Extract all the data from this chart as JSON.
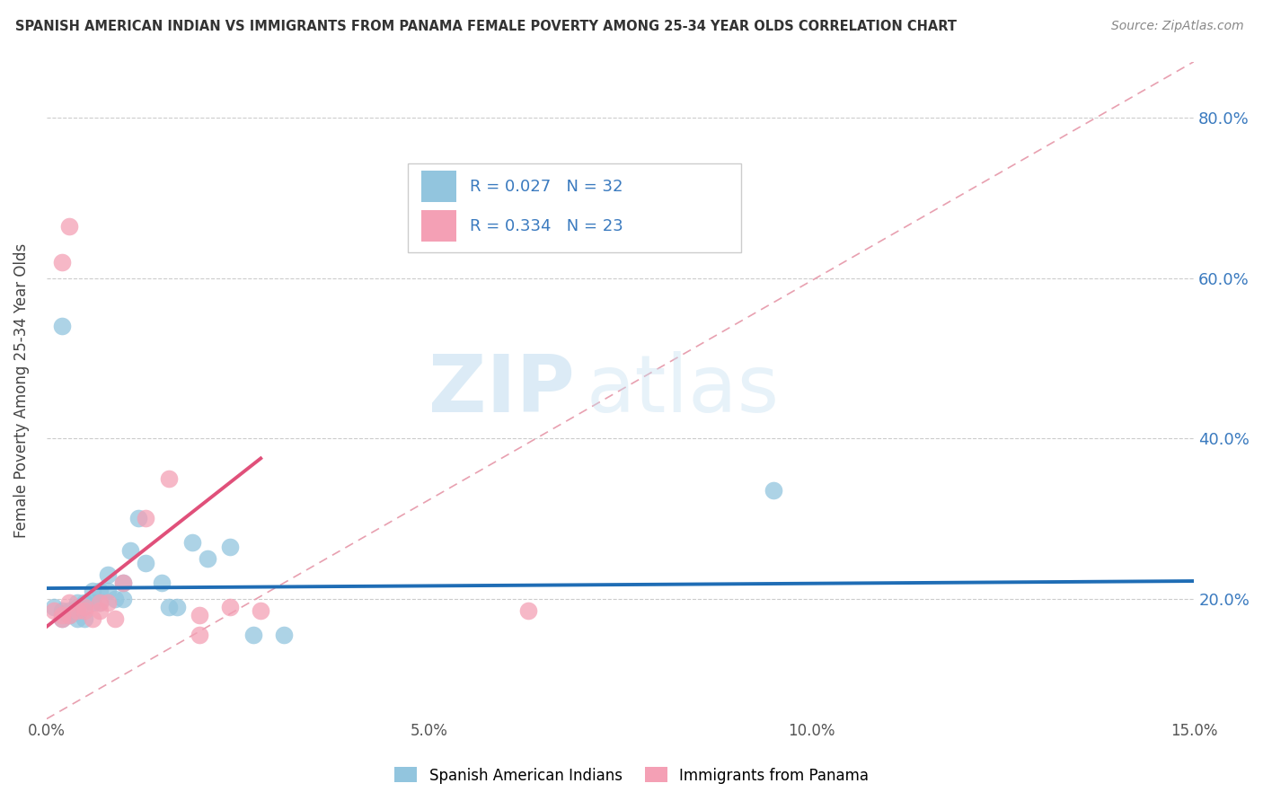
{
  "title": "SPANISH AMERICAN INDIAN VS IMMIGRANTS FROM PANAMA FEMALE POVERTY AMONG 25-34 YEAR OLDS CORRELATION CHART",
  "source": "Source: ZipAtlas.com",
  "ylabel": "Female Poverty Among 25-34 Year Olds",
  "r1": 0.027,
  "n1": 32,
  "r2": 0.334,
  "n2": 23,
  "xlim": [
    0.0,
    0.15
  ],
  "ylim": [
    0.05,
    0.87
  ],
  "yticks": [
    0.2,
    0.4,
    0.6,
    0.8
  ],
  "ytick_labels": [
    "20.0%",
    "40.0%",
    "60.0%",
    "80.0%"
  ],
  "xticks": [
    0.0,
    0.05,
    0.1,
    0.15
  ],
  "xtick_labels": [
    "0.0%",
    "5.0%",
    "10.0%",
    "15.0%"
  ],
  "color_blue": "#92c5de",
  "color_pink": "#f4a0b5",
  "line_blue": "#1f6db5",
  "line_pink": "#e0507a",
  "diag_color": "#e8a0b0",
  "background": "#ffffff",
  "watermark_zip": "ZIP",
  "watermark_atlas": "atlas",
  "legend1": "Spanish American Indians",
  "legend2": "Immigrants from Panama",
  "blue_x": [
    0.001,
    0.002,
    0.002,
    0.003,
    0.003,
    0.004,
    0.004,
    0.004,
    0.005,
    0.005,
    0.006,
    0.006,
    0.007,
    0.007,
    0.008,
    0.008,
    0.009,
    0.01,
    0.01,
    0.011,
    0.012,
    0.013,
    0.015,
    0.016,
    0.017,
    0.019,
    0.021,
    0.024,
    0.027,
    0.031,
    0.095,
    0.002
  ],
  "blue_y": [
    0.19,
    0.185,
    0.175,
    0.185,
    0.18,
    0.19,
    0.195,
    0.175,
    0.195,
    0.175,
    0.195,
    0.21,
    0.21,
    0.195,
    0.21,
    0.23,
    0.2,
    0.22,
    0.2,
    0.26,
    0.3,
    0.245,
    0.22,
    0.19,
    0.19,
    0.27,
    0.25,
    0.265,
    0.155,
    0.155,
    0.335,
    0.54
  ],
  "pink_x": [
    0.001,
    0.002,
    0.002,
    0.003,
    0.003,
    0.004,
    0.005,
    0.005,
    0.006,
    0.007,
    0.007,
    0.008,
    0.009,
    0.01,
    0.013,
    0.016,
    0.02,
    0.02,
    0.024,
    0.028,
    0.063,
    0.002,
    0.003
  ],
  "pink_y": [
    0.185,
    0.18,
    0.175,
    0.18,
    0.195,
    0.185,
    0.185,
    0.19,
    0.175,
    0.185,
    0.195,
    0.195,
    0.175,
    0.22,
    0.3,
    0.35,
    0.18,
    0.155,
    0.19,
    0.185,
    0.185,
    0.62,
    0.665
  ],
  "blue_trend_x": [
    0.0,
    0.15
  ],
  "blue_trend_y": [
    0.213,
    0.222
  ],
  "pink_trend_x": [
    0.0,
    0.028
  ],
  "pink_trend_y": [
    0.165,
    0.375
  ]
}
